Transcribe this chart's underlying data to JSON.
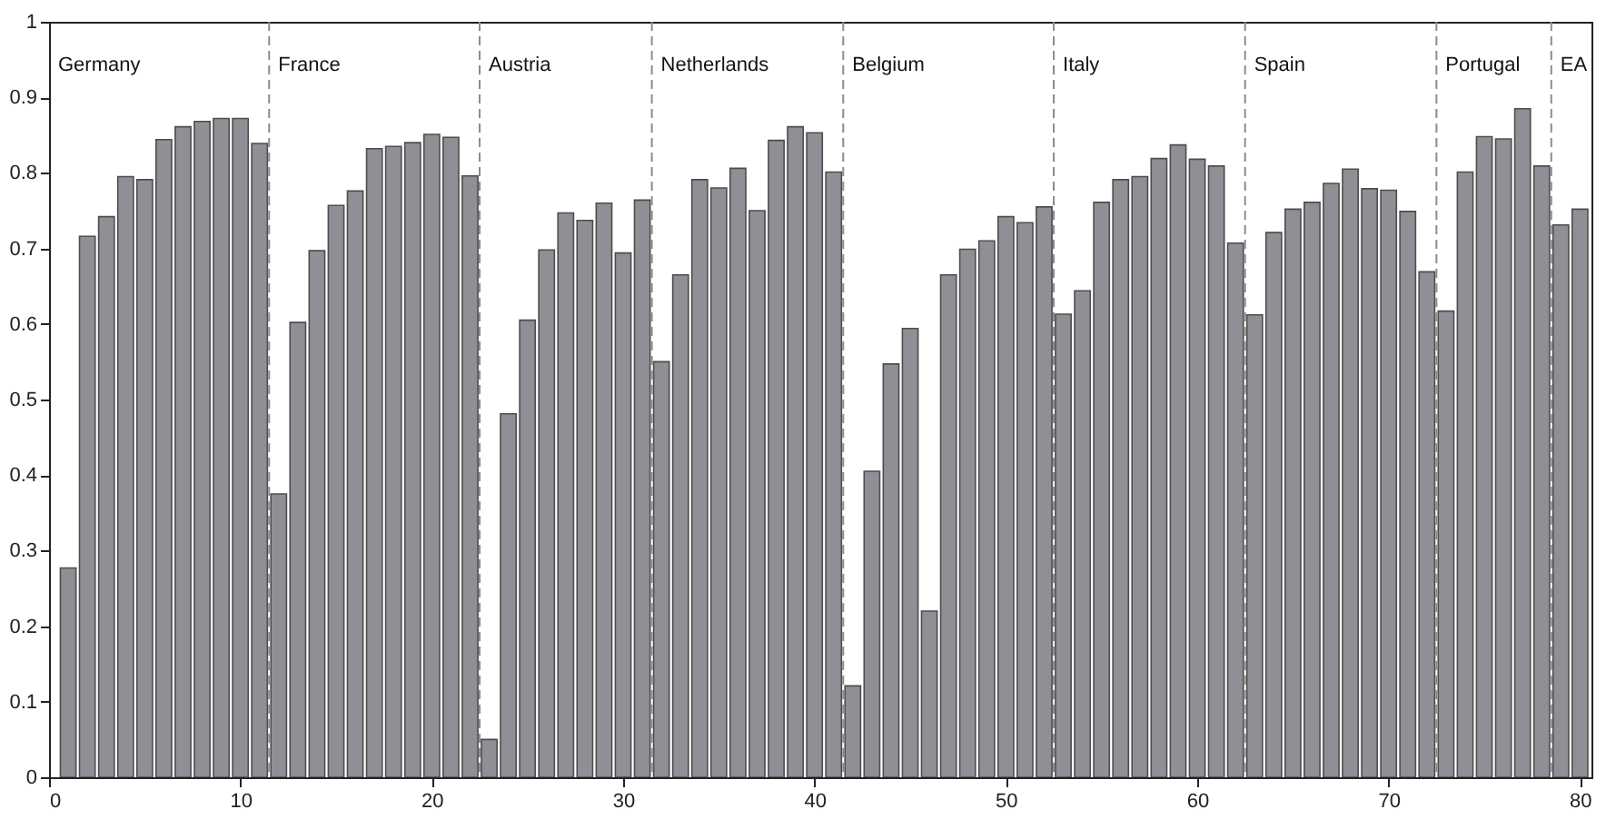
{
  "chart_data": {
    "type": "bar",
    "x": [
      1,
      2,
      3,
      4,
      5,
      6,
      7,
      8,
      9,
      10,
      11,
      12,
      13,
      14,
      15,
      16,
      17,
      18,
      19,
      20,
      21,
      22,
      23,
      24,
      25,
      26,
      27,
      28,
      29,
      30,
      31,
      32,
      33,
      34,
      35,
      36,
      37,
      38,
      39,
      40,
      41,
      42,
      43,
      44,
      45,
      46,
      47,
      48,
      49,
      50,
      51,
      52,
      53,
      54,
      55,
      56,
      57,
      58,
      59,
      60,
      61,
      62,
      63,
      64,
      65,
      66,
      67,
      68,
      69,
      70,
      71,
      72,
      73,
      74,
      75,
      76,
      77,
      78,
      79,
      80
    ],
    "values": [
      0.277,
      0.716,
      0.742,
      0.795,
      0.791,
      0.844,
      0.861,
      0.868,
      0.872,
      0.872,
      0.839,
      0.375,
      0.602,
      0.697,
      0.757,
      0.776,
      0.832,
      0.835,
      0.84,
      0.851,
      0.847,
      0.796,
      0.05,
      0.481,
      0.605,
      0.698,
      0.747,
      0.737,
      0.76,
      0.694,
      0.764,
      0.55,
      0.665,
      0.791,
      0.78,
      0.806,
      0.75,
      0.843,
      0.861,
      0.853,
      0.801,
      0.121,
      0.405,
      0.547,
      0.594,
      0.22,
      0.665,
      0.699,
      0.71,
      0.742,
      0.734,
      0.755,
      0.613,
      0.644,
      0.761,
      0.791,
      0.795,
      0.819,
      0.837,
      0.818,
      0.809,
      0.707,
      0.612,
      0.721,
      0.752,
      0.761,
      0.786,
      0.805,
      0.779,
      0.777,
      0.749,
      0.669,
      0.617,
      0.801,
      0.848,
      0.845,
      0.885,
      0.809,
      0.731,
      0.752
    ],
    "color": "#8f9096",
    "xlim": [
      0,
      80.6
    ],
    "xticks": [
      0,
      10,
      20,
      30,
      40,
      50,
      60,
      70,
      80
    ],
    "ylim": [
      0,
      1
    ],
    "yticks": [
      0,
      0.1,
      0.2,
      0.3,
      0.4,
      0.5,
      0.6,
      0.7,
      0.8,
      0.9,
      1
    ],
    "grid": false,
    "ref_lines": [
      {
        "axis": "x",
        "value": 11.5,
        "line_style": "dashed",
        "color": "#8c8c8c"
      },
      {
        "axis": "x",
        "value": 22.5,
        "line_style": "dashed",
        "color": "#8c8c8c"
      },
      {
        "axis": "x",
        "value": 31.5,
        "line_style": "dashed",
        "color": "#8c8c8c"
      },
      {
        "axis": "x",
        "value": 41.5,
        "line_style": "dashed",
        "color": "#8c8c8c"
      },
      {
        "axis": "x",
        "value": 52.5,
        "line_style": "dashed",
        "color": "#8c8c8c"
      },
      {
        "axis": "x",
        "value": 62.5,
        "line_style": "dashed",
        "color": "#8c8c8c"
      },
      {
        "axis": "x",
        "value": 72.5,
        "line_style": "dashed",
        "color": "#8c8c8c"
      },
      {
        "axis": "x",
        "value": 78.5,
        "line_style": "dashed",
        "color": "#8c8c8c"
      }
    ],
    "annotations": [
      "Germany",
      "France",
      "Austria",
      "Netherlands",
      "Belgium",
      "Italy",
      "Spain",
      "Portugal",
      "EA"
    ]
  }
}
